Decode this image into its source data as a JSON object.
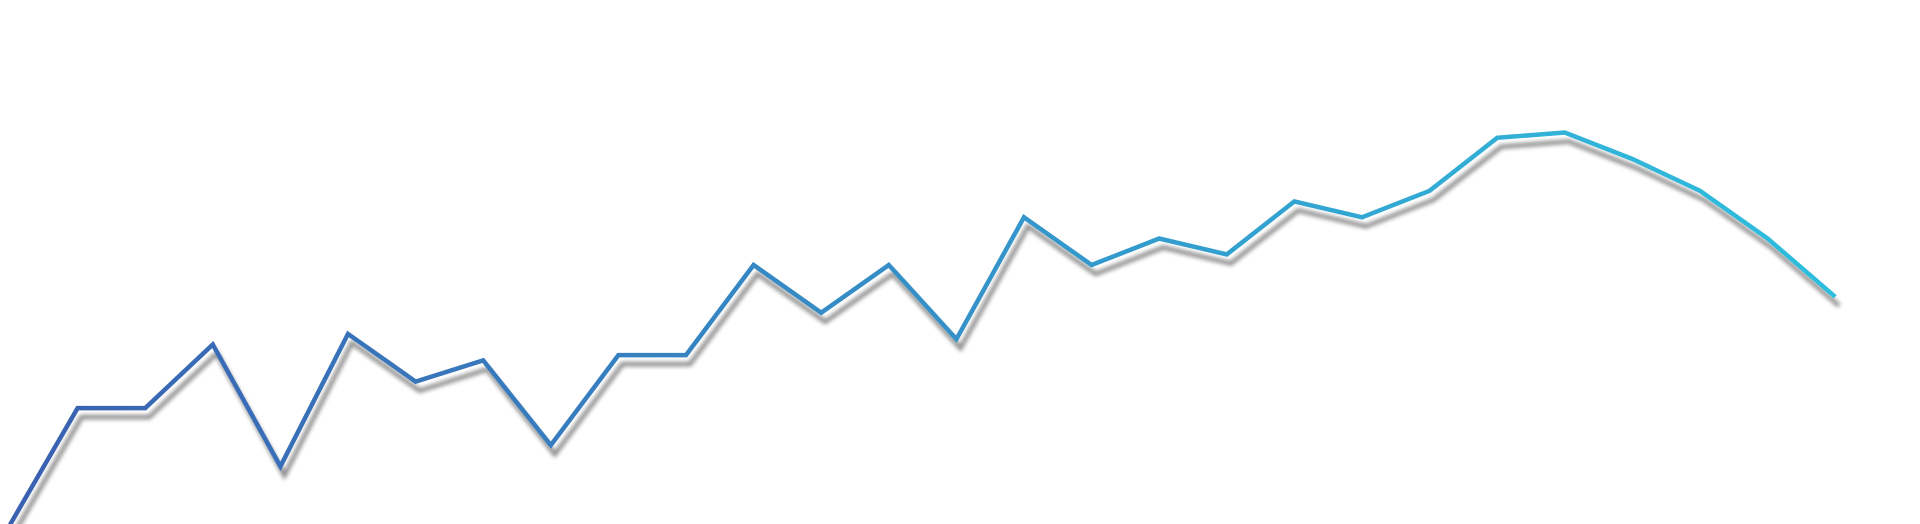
{
  "theme": {
    "background": "#ffffff",
    "line_start_color": "#3a5fb0",
    "line_end_color": "#2ec4e0",
    "shadow_color": "#2b2b3a"
  },
  "chart_data": {
    "type": "line",
    "title": "",
    "xlabel": "",
    "ylabel": "",
    "grid": false,
    "legend": "none",
    "x": [
      0,
      1,
      2,
      3,
      4,
      5,
      6,
      7,
      8,
      9,
      10,
      11,
      12,
      13,
      14,
      15,
      16,
      17,
      18,
      19,
      20,
      21,
      22,
      23,
      24,
      25,
      26,
      27
    ],
    "xlim": [
      0,
      27
    ],
    "ylim": [
      0,
      100
    ],
    "series": [
      {
        "values": [
          1,
          23,
          23,
          35,
          12,
          37,
          28,
          32,
          16,
          33,
          33,
          50,
          41,
          50,
          36,
          59,
          50,
          55,
          52,
          62,
          59,
          64,
          74,
          75,
          70,
          64,
          55,
          44
        ]
      }
    ]
  }
}
